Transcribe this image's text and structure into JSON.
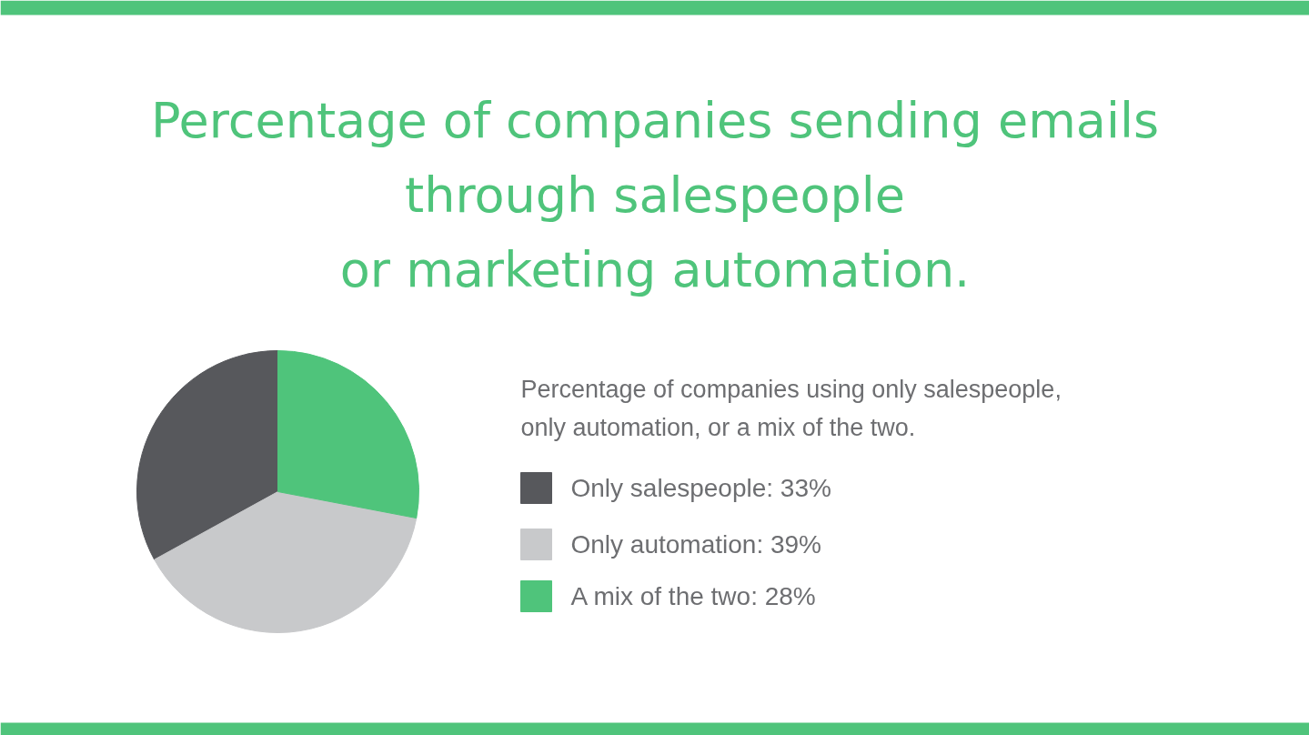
{
  "chart_data": {
    "type": "pie",
    "title": "Percentage of companies sending emails\nthrough salespeople\nor marketing automation.",
    "legend_title": "Percentage of companies using only salespeople,\nonly automation, or a mix of the two.",
    "categories": [
      "Only salespeople",
      "Only automation",
      "A mix of the two"
    ],
    "values": [
      33,
      39,
      28
    ],
    "value_labels": [
      "33%",
      "39%",
      "28%"
    ],
    "colors": [
      "#57585c",
      "#c8c9cb",
      "#4fc47b"
    ],
    "legend": "right"
  }
}
